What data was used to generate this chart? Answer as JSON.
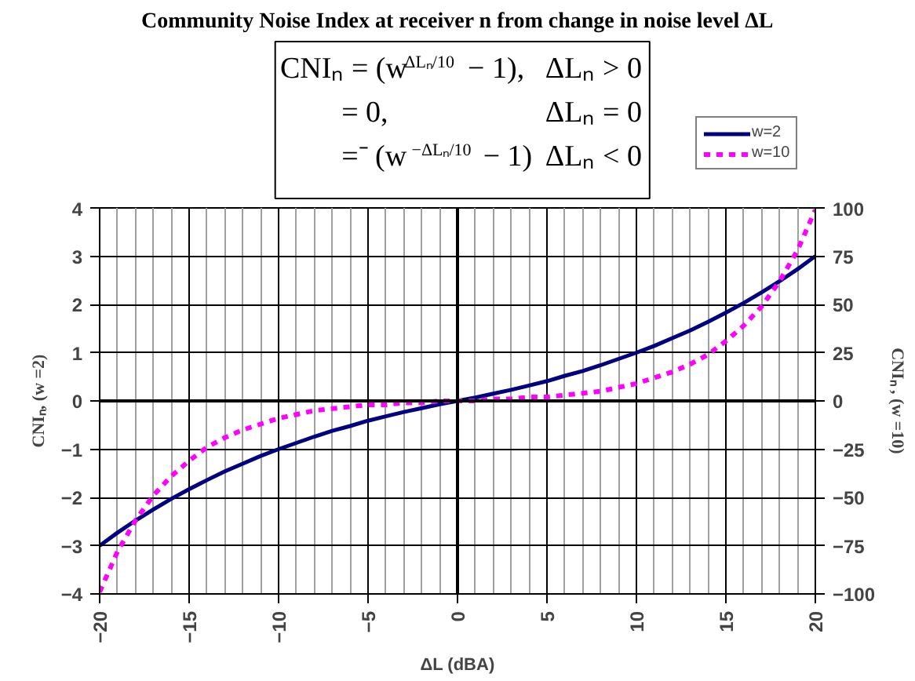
{
  "chart_data": {
    "type": "line",
    "title": "Community Noise Index at receiver n from change in noise level ΔL",
    "annotations": [
      "CNIₙ = (w$^{ΔLₙ/10}$ − 1),",
      "ΔLₙ > 0",
      "= 0,",
      "ΔLₙ = 0",
      "=⁻ (w$^{−ΔLₙ/10}$ − 1)",
      "ΔLₙ < 0"
    ],
    "xlabel": "ΔL (dBA)",
    "ylabel": "CNIₙ, (w =2)",
    "y2label": "CNIₙ , (w =10)",
    "x": [
      -20,
      -19,
      -18,
      -17,
      -16,
      -15,
      -14,
      -13,
      -12,
      -11,
      -10,
      -9,
      -8,
      -7,
      -6,
      -5,
      -4,
      -3,
      -2,
      -1,
      0,
      1,
      2,
      3,
      4,
      5,
      6,
      7,
      8,
      9,
      10,
      11,
      12,
      13,
      14,
      15,
      16,
      17,
      18,
      19,
      20
    ],
    "series": [
      {
        "name": "w=2",
        "color": "#000080",
        "line_style": "solid",
        "values": [
          -3.0,
          -2.73,
          -2.48,
          -2.25,
          -2.03,
          -1.83,
          -1.64,
          -1.46,
          -1.3,
          -1.14,
          -1.0,
          -0.87,
          -0.74,
          -0.62,
          -0.52,
          -0.41,
          -0.32,
          -0.23,
          -0.15,
          -0.07,
          0,
          0.07,
          0.15,
          0.23,
          0.32,
          0.41,
          0.52,
          0.62,
          0.74,
          0.87,
          1.0,
          1.14,
          1.3,
          1.46,
          1.64,
          1.83,
          2.03,
          2.25,
          2.48,
          2.73,
          3.0
        ]
      },
      {
        "name": "w=10",
        "color": "#ff00ff",
        "line_style": "dashed",
        "axis": "y2",
        "values": [
          -99,
          -78,
          -62,
          -49,
          -39,
          -31,
          -24,
          -19,
          -15,
          -12,
          -9,
          -7,
          -5,
          -4,
          -3,
          -2,
          -2,
          -1,
          -1,
          0,
          0,
          0,
          1,
          1,
          2,
          2,
          3,
          4,
          5,
          7,
          9,
          12,
          15,
          19,
          24,
          31,
          39,
          49,
          62,
          78,
          99
        ]
      }
    ],
    "xlim": [
      -20,
      20
    ],
    "xticks": [
      -20,
      -15,
      -10,
      -5,
      0,
      5,
      10,
      15,
      20
    ],
    "ylim": [
      -4,
      4
    ],
    "yticks": [
      -4,
      -3,
      -2,
      -1,
      0,
      1,
      2,
      3,
      4
    ],
    "y2lim": [
      -100,
      100
    ],
    "y2ticks": [
      -100,
      -75,
      -50,
      -25,
      0,
      25,
      50,
      75,
      100
    ],
    "grid": true,
    "legend": "top right",
    "marker": "none"
  }
}
